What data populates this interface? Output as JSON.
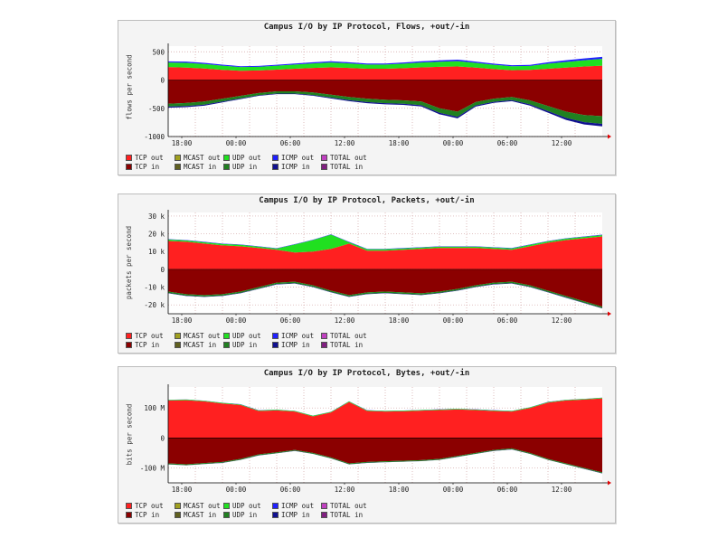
{
  "chart_data": [
    {
      "type": "area",
      "title": "Campus I/O by IP Protocol, Flows, +out/-in",
      "ylabel": "flows per second",
      "ylim": [
        -1000,
        600
      ],
      "y_ticks": [
        500,
        0,
        -500,
        -1000
      ],
      "y_tick_labels": [
        "500",
        "0",
        "-500",
        "-1000"
      ],
      "x_tick_labels": [
        "18:00",
        "00:00",
        "06:00",
        "12:00",
        "18:00",
        "00:00",
        "06:00",
        "12:00"
      ],
      "x": [
        0,
        2,
        4,
        6,
        8,
        10,
        12,
        14,
        16,
        18,
        20,
        22,
        24,
        26,
        28,
        30,
        32,
        34,
        36,
        38,
        40,
        42,
        44,
        46,
        48
      ],
      "series": [
        {
          "name": "TCP out",
          "values": [
            230,
            220,
            205,
            180,
            165,
            170,
            185,
            200,
            215,
            225,
            215,
            200,
            200,
            210,
            225,
            235,
            240,
            220,
            195,
            175,
            180,
            200,
            220,
            240,
            255
          ]
        },
        {
          "name": "UDP out",
          "values": [
            80,
            85,
            80,
            75,
            65,
            65,
            70,
            75,
            80,
            85,
            80,
            75,
            75,
            80,
            85,
            90,
            95,
            85,
            75,
            70,
            70,
            90,
            100,
            110,
            120
          ]
        },
        {
          "name": "ICMP out",
          "values": [
            20,
            22,
            20,
            18,
            15,
            15,
            16,
            18,
            20,
            22,
            20,
            18,
            18,
            20,
            22,
            24,
            26,
            22,
            20,
            18,
            18,
            25,
            30,
            33,
            35
          ]
        },
        {
          "name": "TCP in",
          "values": [
            -420,
            -405,
            -380,
            -330,
            -280,
            -230,
            -200,
            -200,
            -220,
            -260,
            -300,
            -330,
            -350,
            -360,
            -380,
            -500,
            -560,
            -390,
            -330,
            -300,
            -360,
            -460,
            -560,
            -620,
            -640
          ]
        },
        {
          "name": "UDP in",
          "values": [
            -50,
            -55,
            -55,
            -50,
            -45,
            -40,
            -40,
            -40,
            -45,
            -50,
            -55,
            -60,
            -60,
            -60,
            -65,
            -80,
            -90,
            -60,
            -55,
            -55,
            -70,
            -90,
            -110,
            -125,
            -135
          ]
        },
        {
          "name": "ICMP in",
          "values": [
            -20,
            -20,
            -18,
            -15,
            -12,
            -10,
            -10,
            -10,
            -12,
            -15,
            -18,
            -20,
            -20,
            -20,
            -22,
            -25,
            -28,
            -20,
            -18,
            -18,
            -22,
            -28,
            -35,
            -40,
            -45
          ]
        }
      ]
    },
    {
      "type": "area",
      "title": "Campus I/O by IP Protocol, Packets, +out/-in",
      "ylabel": "packets per second",
      "ylim": [
        -25000,
        32000
      ],
      "y_ticks": [
        30000,
        20000,
        10000,
        0,
        -10000,
        -20000
      ],
      "y_tick_labels": [
        "30 k",
        "20 k",
        "10 k",
        "0",
        "-10 k",
        "-20 k"
      ],
      "x_tick_labels": [
        "18:00",
        "00:00",
        "06:00",
        "12:00",
        "18:00",
        "00:00",
        "06:00",
        "12:00"
      ],
      "x": [
        0,
        2,
        4,
        6,
        8,
        10,
        12,
        14,
        16,
        18,
        20,
        22,
        24,
        26,
        28,
        30,
        32,
        34,
        36,
        38,
        40,
        42,
        44,
        46,
        48
      ],
      "series": [
        {
          "name": "TCP out",
          "values": [
            16000,
            15500,
            14500,
            13500,
            13000,
            12000,
            11000,
            9500,
            10000,
            11500,
            14500,
            10500,
            10500,
            11000,
            11500,
            12000,
            12000,
            12000,
            11500,
            11000,
            13000,
            15000,
            16500,
            17500,
            18500
          ]
        },
        {
          "name": "UDP out",
          "values": [
            800,
            800,
            800,
            800,
            800,
            800,
            700,
            4500,
            6500,
            8000,
            800,
            800,
            800,
            800,
            800,
            800,
            800,
            800,
            800,
            800,
            800,
            800,
            800,
            800,
            800
          ]
        },
        {
          "name": "ICMP out",
          "values": [
            200,
            200,
            200,
            200,
            200,
            200,
            200,
            200,
            200,
            200,
            200,
            200,
            200,
            200,
            200,
            200,
            200,
            200,
            200,
            200,
            200,
            200,
            200,
            200,
            200
          ]
        },
        {
          "name": "TCP in",
          "values": [
            -12500,
            -14000,
            -14500,
            -14000,
            -12500,
            -10000,
            -7500,
            -7000,
            -9000,
            -12000,
            -14500,
            -13000,
            -12500,
            -13000,
            -13500,
            -12500,
            -11000,
            -9000,
            -7500,
            -7000,
            -9000,
            -12000,
            -15000,
            -18000,
            -21000
          ]
        },
        {
          "name": "UDP in",
          "values": [
            -800,
            -800,
            -800,
            -800,
            -800,
            -800,
            -800,
            -800,
            -800,
            -800,
            -800,
            -800,
            -800,
            -800,
            -800,
            -800,
            -800,
            -800,
            -800,
            -800,
            -800,
            -800,
            -800,
            -800,
            -800
          ]
        },
        {
          "name": "ICMP in",
          "values": [
            -200,
            -200,
            -200,
            -200,
            -200,
            -200,
            -200,
            -200,
            -200,
            -200,
            -200,
            -200,
            -200,
            -200,
            -200,
            -200,
            -200,
            -200,
            -200,
            -200,
            -200,
            -200,
            -200,
            -200,
            -200
          ]
        }
      ]
    },
    {
      "type": "area",
      "title": "Campus I/O by IP Protocol, Bytes, +out/-in",
      "ylabel": "bits per second",
      "ylim": [
        -150000000,
        170000000
      ],
      "y_ticks": [
        100000000,
        0,
        -100000000
      ],
      "y_tick_labels": [
        "100 M",
        "0",
        "-100 M"
      ],
      "x_tick_labels": [
        "18:00",
        "00:00",
        "06:00",
        "12:00",
        "18:00",
        "00:00",
        "06:00",
        "12:00"
      ],
      "x": [
        0,
        2,
        4,
        6,
        8,
        10,
        12,
        14,
        16,
        18,
        20,
        22,
        24,
        26,
        28,
        30,
        32,
        34,
        36,
        38,
        40,
        42,
        44,
        46,
        48
      ],
      "series": [
        {
          "name": "TCP out",
          "values": [
            125000000,
            126000000,
            122000000,
            115000000,
            110000000,
            90000000,
            92000000,
            88000000,
            72000000,
            85000000,
            120000000,
            90000000,
            88000000,
            89000000,
            91000000,
            93000000,
            95000000,
            93000000,
            90000000,
            88000000,
            100000000,
            118000000,
            125000000,
            128000000,
            132000000
          ]
        },
        {
          "name": "UDP out",
          "values": [
            2000000,
            2000000,
            2000000,
            2000000,
            2000000,
            2000000,
            2000000,
            2000000,
            2000000,
            2000000,
            2000000,
            2000000,
            2000000,
            2000000,
            2000000,
            2000000,
            2000000,
            2000000,
            2000000,
            2000000,
            2000000,
            2000000,
            2000000,
            2000000,
            2000000
          ]
        },
        {
          "name": "ICMP out",
          "values": [
            500000,
            500000,
            500000,
            500000,
            500000,
            500000,
            500000,
            500000,
            500000,
            500000,
            500000,
            500000,
            500000,
            500000,
            500000,
            500000,
            500000,
            500000,
            500000,
            500000,
            500000,
            500000,
            500000,
            500000,
            500000
          ]
        },
        {
          "name": "TCP in",
          "values": [
            -85000000,
            -88000000,
            -84000000,
            -80000000,
            -70000000,
            -55000000,
            -48000000,
            -40000000,
            -50000000,
            -65000000,
            -85000000,
            -80000000,
            -78000000,
            -76000000,
            -74000000,
            -70000000,
            -60000000,
            -50000000,
            -40000000,
            -35000000,
            -50000000,
            -70000000,
            -85000000,
            -100000000,
            -115000000
          ]
        },
        {
          "name": "UDP in",
          "values": [
            -3000000,
            -3000000,
            -3000000,
            -3000000,
            -3000000,
            -3000000,
            -3000000,
            -3000000,
            -3000000,
            -3000000,
            -3000000,
            -3000000,
            -3000000,
            -3000000,
            -3000000,
            -3000000,
            -3000000,
            -3000000,
            -3000000,
            -3000000,
            -3000000,
            -3000000,
            -3000000,
            -3000000,
            -3000000
          ]
        },
        {
          "name": "ICMP in",
          "values": [
            -500000,
            -500000,
            -500000,
            -500000,
            -500000,
            -500000,
            -500000,
            -500000,
            -500000,
            -500000,
            -500000,
            -500000,
            -500000,
            -500000,
            -500000,
            -500000,
            -500000,
            -500000,
            -500000,
            -500000,
            -500000,
            -500000,
            -500000,
            -500000,
            -500000
          ]
        }
      ]
    }
  ],
  "legend": [
    {
      "label": "TCP out",
      "color": "#ff2020"
    },
    {
      "label": "MCAST out",
      "color": "#a0a020"
    },
    {
      "label": "UDP out",
      "color": "#20e020"
    },
    {
      "label": "ICMP out",
      "color": "#2020ff"
    },
    {
      "label": "TOTAL out",
      "color": "#c040c0"
    },
    {
      "label": "TCP in",
      "color": "#8b0000"
    },
    {
      "label": "MCAST in",
      "color": "#606020"
    },
    {
      "label": "UDP in",
      "color": "#208020"
    },
    {
      "label": "ICMP in",
      "color": "#101090"
    },
    {
      "label": "TOTAL in",
      "color": "#802080"
    }
  ],
  "colors": {
    "TCP out": "#ff2020",
    "UDP out": "#20e020",
    "ICMP out": "#2020ff",
    "TCP in": "#8b0000",
    "UDP in": "#208020",
    "ICMP in": "#101090",
    "grid": "#d0a0a0",
    "plot_bg": "#ffffff"
  }
}
